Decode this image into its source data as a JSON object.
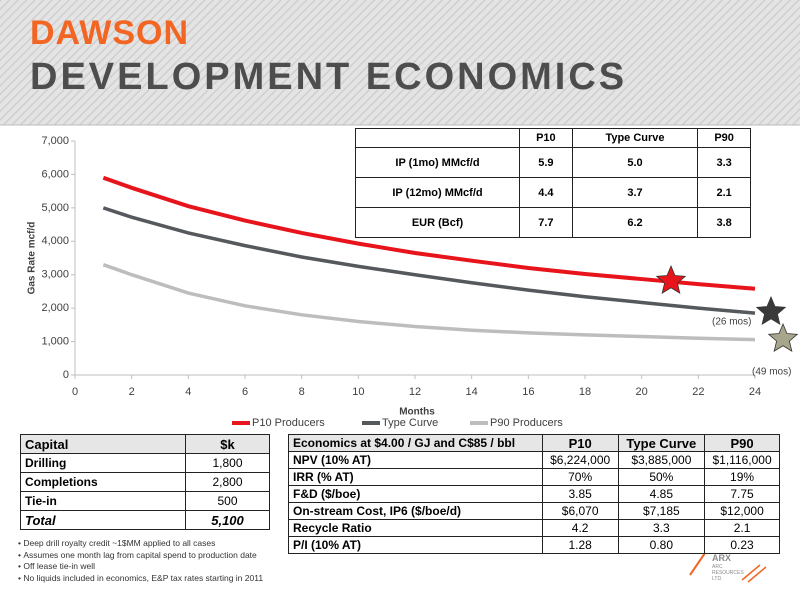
{
  "header": {
    "title": "DAWSON",
    "subtitle": "DEVELOPMENT ECONOMICS"
  },
  "chart_data": {
    "type": "line",
    "x_label": "Months",
    "y_label": "Gas Rate mcf/d",
    "x": [
      1,
      2,
      4,
      6,
      8,
      10,
      12,
      14,
      16,
      18,
      20,
      22,
      24
    ],
    "xlim": [
      0,
      24
    ],
    "xticks": [
      0,
      2,
      4,
      6,
      8,
      10,
      12,
      14,
      16,
      18,
      20,
      22,
      24
    ],
    "ylim": [
      0,
      7000
    ],
    "yticks": [
      0,
      {
        "value": 1000,
        "label": "1,000"
      },
      {
        "value": 2000,
        "label": "2,000"
      },
      {
        "value": 3000,
        "label": "3,000"
      },
      {
        "value": 4000,
        "label": "4,000"
      },
      {
        "value": 5000,
        "label": "5,000"
      },
      {
        "value": 6000,
        "label": "6,000"
      },
      {
        "value": 7000,
        "label": "7,000"
      }
    ],
    "grid": false,
    "legend": "bottom",
    "series": [
      {
        "name": "P10 Producers",
        "color": "#e8141b",
        "values": [
          5900,
          5600,
          5050,
          4620,
          4250,
          3930,
          3650,
          3420,
          3200,
          3020,
          2870,
          2720,
          2580
        ]
      },
      {
        "name": "Type Curve",
        "color": "#55585c",
        "values": [
          5000,
          4720,
          4250,
          3870,
          3530,
          3250,
          3000,
          2760,
          2540,
          2340,
          2170,
          2000,
          1850
        ]
      },
      {
        "name": "P90 Producers",
        "color": "#bdbdbd",
        "values": [
          3300,
          3000,
          2450,
          2070,
          1800,
          1600,
          1450,
          1340,
          1260,
          1200,
          1150,
          1100,
          1060
        ]
      }
    ],
    "annotations": [
      "(26 mos)",
      "(49 mos)"
    ]
  },
  "rate_table": {
    "columns": [
      "P10",
      "Type Curve",
      "P90"
    ],
    "rows": [
      {
        "label": "IP (1mo) MMcf/d",
        "cells": [
          "5.9",
          "5.0",
          "3.3"
        ]
      },
      {
        "label": "IP (12mo) MMcf/d",
        "cells": [
          "4.4",
          "3.7",
          "2.1"
        ]
      },
      {
        "label": "EUR (Bcf)",
        "cells": [
          "7.7",
          "6.2",
          "3.8"
        ]
      }
    ]
  },
  "capital_table": {
    "columns": [
      "Capital",
      "$k"
    ],
    "rows": [
      [
        "Drilling",
        "1,800"
      ],
      [
        "Completions",
        "2,800"
      ],
      [
        "Tie-in",
        "500"
      ],
      [
        "Total",
        "5,100"
      ]
    ]
  },
  "economics_table": {
    "columns": [
      "Economics at $4.00 / GJ and C$85 / bbl",
      "P10",
      "Type Curve",
      "P90"
    ],
    "rows": [
      [
        "NPV (10% AT)",
        "$6,224,000",
        "$3,885,000",
        "$1,116,000"
      ],
      [
        "IRR (% AT)",
        "70%",
        "50%",
        "19%"
      ],
      [
        "F&D ($/boe)",
        "3.85",
        "4.85",
        "7.75"
      ],
      [
        "On-stream Cost, IP6 ($/boe/d)",
        "$6,070",
        "$7,185",
        "$12,000"
      ],
      [
        "Recycle Ratio",
        "4.2",
        "3.3",
        "2.1"
      ],
      [
        "P/I (10% AT)",
        "1.28",
        "0.80",
        "0.23"
      ]
    ]
  },
  "notes": [
    "Deep drill royalty credit ~1$MM applied to all cases",
    "Assumes one month lag from capital spend to production date",
    "Off lease tie-in well",
    "No liquids included in economics, E&P tax rates starting in   2011"
  ],
  "logo": {
    "name": "ARX",
    "company": "ARC RESOURCES LTD."
  }
}
